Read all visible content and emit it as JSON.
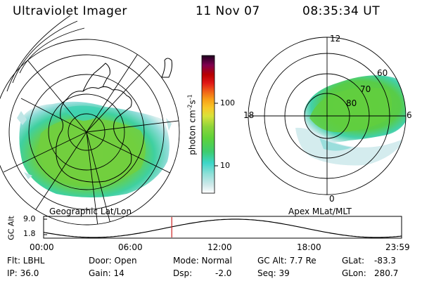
{
  "header": {
    "title": "Ultraviolet Imager",
    "date": "11 Nov 07",
    "time": "08:35:34 UT"
  },
  "colors": {
    "scale": [
      "#ffffff",
      "#cfe9ea",
      "#8fe0d8",
      "#3cd6c8",
      "#3ccc70",
      "#5ed23a",
      "#8cd43a",
      "#d8e23a",
      "#f8c828",
      "#f8a018",
      "#f06018",
      "#e01818",
      "#b80000",
      "#800050",
      "#300030"
    ],
    "marker": "#cc2222"
  },
  "colorbar": {
    "unit": "photon cm",
    "unit_exp1": "-2",
    "unit_mid": "s",
    "unit_exp2": "-1",
    "ticks": [
      "100",
      "10"
    ]
  },
  "left_map": {
    "label": "Geographic Lat/Lon"
  },
  "right_map": {
    "label": "Apex MLat/MLT",
    "mlt_labels": {
      "top": "12",
      "left": "18",
      "right": "6",
      "bottom": "0"
    },
    "lat_labels": [
      "80",
      "70",
      "60"
    ]
  },
  "altitude_plot": {
    "axis_label": "GC Alt",
    "y_ticks": [
      "9.0",
      "1.8"
    ],
    "x_ticks": [
      "00:00",
      "06:00",
      "12:00",
      "18:00",
      "23:59"
    ],
    "current_time_fraction": 0.358
  },
  "info": {
    "flt": "Flt: LBHL",
    "ip": "IP: 36.0",
    "door": "Door: Open",
    "gain": "Gain: 14",
    "mode": "Mode: Normal",
    "dsp": "Dsp:",
    "dsp_val": "-2.0",
    "gcalt": "GC Alt: 7.7 Re",
    "seq": "Seq: 39",
    "glat": "GLat:",
    "glat_val": "-83.3",
    "glon": "GLon:",
    "glon_val": "280.7"
  }
}
